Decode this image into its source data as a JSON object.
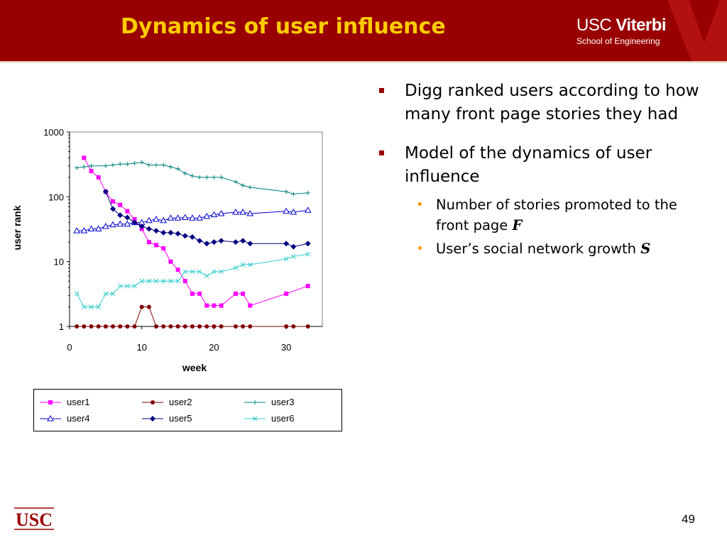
{
  "slide": {
    "title": "Dynamics of user influence",
    "logo_line1_a": "USC ",
    "logo_line1_b": "Viterbi",
    "logo_line2": "School of Engineering",
    "footer_logo": "USC",
    "page_number": "49",
    "colors": {
      "header": "#990000",
      "title": "#ffcc00",
      "bullet_square": "#990000",
      "bullet_dot": "#ff9900"
    }
  },
  "bullets": [
    {
      "text": "Digg ranked users according to how many front page stories they had"
    },
    {
      "text": "Model of the dynamics of user influence",
      "sub": [
        {
          "text": "Number of stories promoted to the front page ",
          "symbol": "F"
        },
        {
          "text": "User’s social network growth ",
          "symbol": "S"
        }
      ]
    }
  ],
  "chart_data": {
    "type": "line",
    "xlabel": "week",
    "ylabel": "user rank",
    "xlim": [
      0,
      35
    ],
    "ylim": [
      1,
      1000
    ],
    "yscale": "log",
    "xticks": [
      0,
      10,
      20,
      30
    ],
    "yticks": [
      1,
      10,
      100,
      1000
    ],
    "grid": false,
    "legend": "bottom",
    "series": [
      {
        "name": "user1",
        "color": "#ff00ff",
        "marker": "square",
        "x": [
          2,
          3,
          4,
          5,
          6,
          7,
          8,
          9,
          10,
          11,
          12,
          13,
          14,
          15,
          16,
          17,
          18,
          19,
          20,
          21,
          23,
          24,
          25,
          30,
          33
        ],
        "y": [
          400,
          250,
          200,
          120,
          85,
          75,
          60,
          45,
          32,
          20,
          18,
          16,
          10,
          7.5,
          5,
          3.2,
          3.2,
          2.1,
          2.1,
          2.1,
          3.2,
          3.2,
          2.1,
          3.2,
          4.2
        ]
      },
      {
        "name": "user2",
        "color": "#800000",
        "marker": "circle",
        "x": [
          1,
          2,
          3,
          4,
          5,
          6,
          7,
          8,
          9,
          10,
          11,
          12,
          13,
          14,
          15,
          16,
          17,
          18,
          19,
          20,
          21,
          23,
          24,
          25,
          30,
          31,
          33
        ],
        "y": [
          1,
          1,
          1,
          1,
          1,
          1,
          1,
          1,
          1,
          2,
          2,
          1,
          1,
          1,
          1,
          1,
          1,
          1,
          1,
          1,
          1,
          1,
          1,
          1,
          1,
          1,
          1
        ]
      },
      {
        "name": "user3",
        "color": "#008080",
        "marker": "plus",
        "x": [
          1,
          2,
          3,
          5,
          6,
          7,
          8,
          9,
          10,
          11,
          12,
          13,
          14,
          15,
          16,
          17,
          18,
          19,
          20,
          21,
          23,
          24,
          25,
          30,
          31,
          33
        ],
        "y": [
          280,
          290,
          300,
          300,
          310,
          320,
          320,
          330,
          340,
          310,
          310,
          310,
          290,
          270,
          230,
          210,
          200,
          200,
          200,
          200,
          170,
          150,
          140,
          120,
          110,
          115
        ]
      },
      {
        "name": "user4",
        "color": "#0000cc",
        "marker": "triangle",
        "x": [
          1,
          2,
          3,
          4,
          5,
          6,
          7,
          8,
          9,
          10,
          11,
          12,
          13,
          14,
          15,
          16,
          17,
          18,
          19,
          20,
          21,
          23,
          24,
          25,
          30,
          31,
          33
        ],
        "y": [
          30,
          30,
          32,
          32,
          35,
          37,
          38,
          38,
          40,
          40,
          43,
          45,
          43,
          47,
          47,
          48,
          47,
          47,
          50,
          53,
          55,
          58,
          58,
          55,
          60,
          58,
          62
        ]
      },
      {
        "name": "user5",
        "color": "#000080",
        "marker": "diamond",
        "x": [
          5,
          6,
          7,
          8,
          9,
          10,
          11,
          12,
          13,
          14,
          15,
          16,
          17,
          18,
          19,
          20,
          21,
          23,
          24,
          25,
          30,
          31,
          33
        ],
        "y": [
          120,
          65,
          52,
          48,
          40,
          35,
          32,
          30,
          28,
          28,
          27,
          25,
          24,
          21,
          19,
          20,
          21,
          20,
          21,
          19,
          19,
          17,
          19
        ]
      },
      {
        "name": "user6",
        "color": "#33cccc",
        "marker": "x",
        "x": [
          1,
          2,
          3,
          4,
          5,
          6,
          7,
          8,
          9,
          10,
          11,
          12,
          13,
          14,
          15,
          16,
          17,
          18,
          19,
          20,
          21,
          23,
          24,
          25,
          30,
          31,
          33
        ],
        "y": [
          3.2,
          2,
          2,
          2,
          3.2,
          3.2,
          4.2,
          4.2,
          4.2,
          5,
          5,
          5,
          5,
          5,
          5,
          7,
          7,
          7,
          6,
          7,
          7,
          8,
          9,
          9,
          11,
          12,
          13
        ]
      }
    ]
  }
}
